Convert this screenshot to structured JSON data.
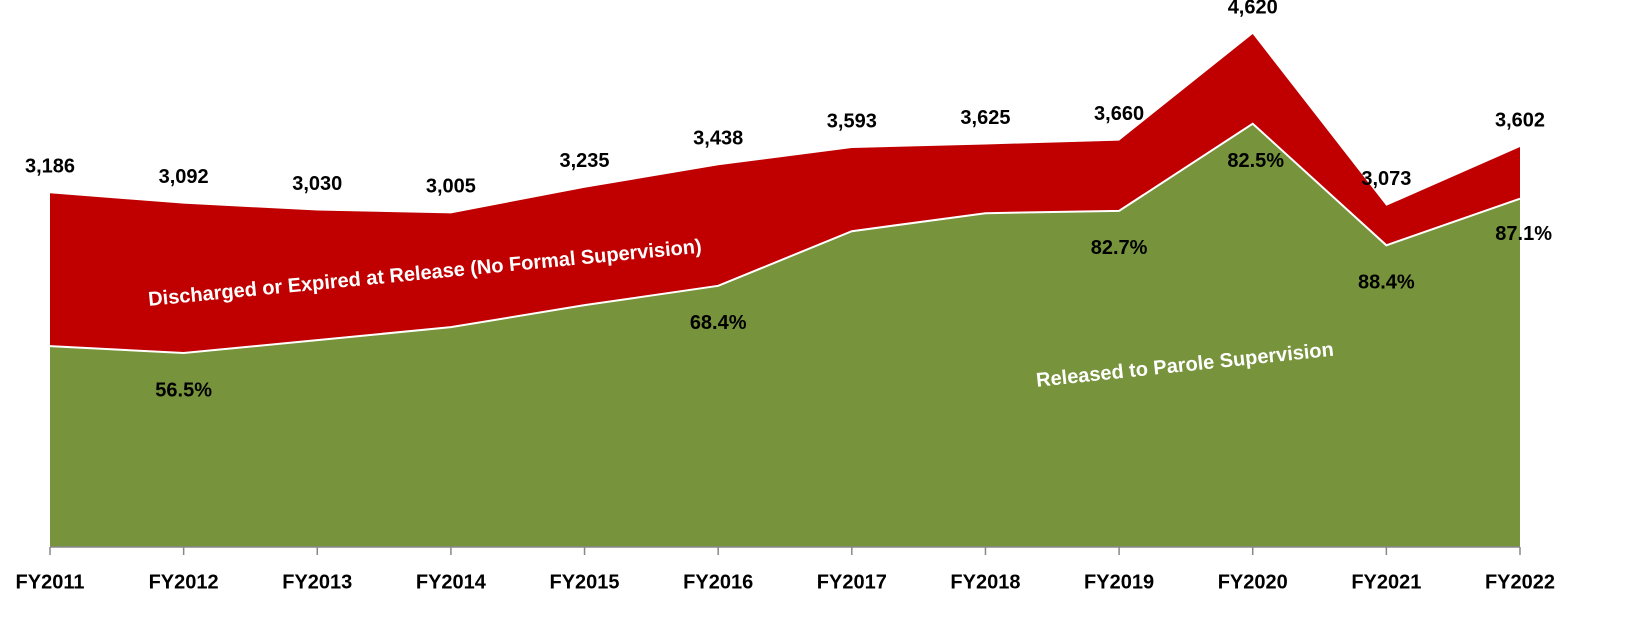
{
  "chart_data": {
    "type": "stacked_area",
    "categories": [
      "FY2011",
      "FY2012",
      "FY2013",
      "FY2014",
      "FY2015",
      "FY2016",
      "FY2017",
      "FY2018",
      "FY2019",
      "FY2020",
      "FY2021",
      "FY2022"
    ],
    "series": [
      {
        "name": "Released to Parole Supervision",
        "color": "#77933c",
        "values": [
          1809,
          1747,
          1863,
          1980,
          2178,
          2352,
          2844,
          3006,
          3027,
          3812,
          2717,
          3137
        ]
      },
      {
        "name": "Discharged or Expired at Release (No Formal Supervision)",
        "color": "#c00000",
        "values": [
          1377,
          1345,
          1167,
          1025,
          1057,
          1086,
          749,
          619,
          633,
          808,
          356,
          465
        ]
      }
    ],
    "totals": {
      "values": [
        3186,
        3092,
        3030,
        3005,
        3235,
        3438,
        3593,
        3625,
        3660,
        4620,
        3073,
        3602
      ],
      "value_labels": [
        "3,186",
        "3,092",
        "3,030",
        "3,005",
        "3,235",
        "3,438",
        "3,593",
        "3,625",
        "3,660",
        "4,620",
        "3,073",
        "3,602"
      ]
    },
    "parole_share": {
      "values": [
        null,
        56.5,
        null,
        null,
        null,
        68.4,
        null,
        null,
        82.7,
        82.5,
        88.4,
        87.1
      ],
      "value_labels": [
        null,
        "56.5%",
        null,
        null,
        null,
        "68.4%",
        null,
        null,
        "82.7%",
        "82.5%",
        "88.4%",
        "87.1%"
      ]
    },
    "ylim": [
      0,
      4800
    ]
  }
}
